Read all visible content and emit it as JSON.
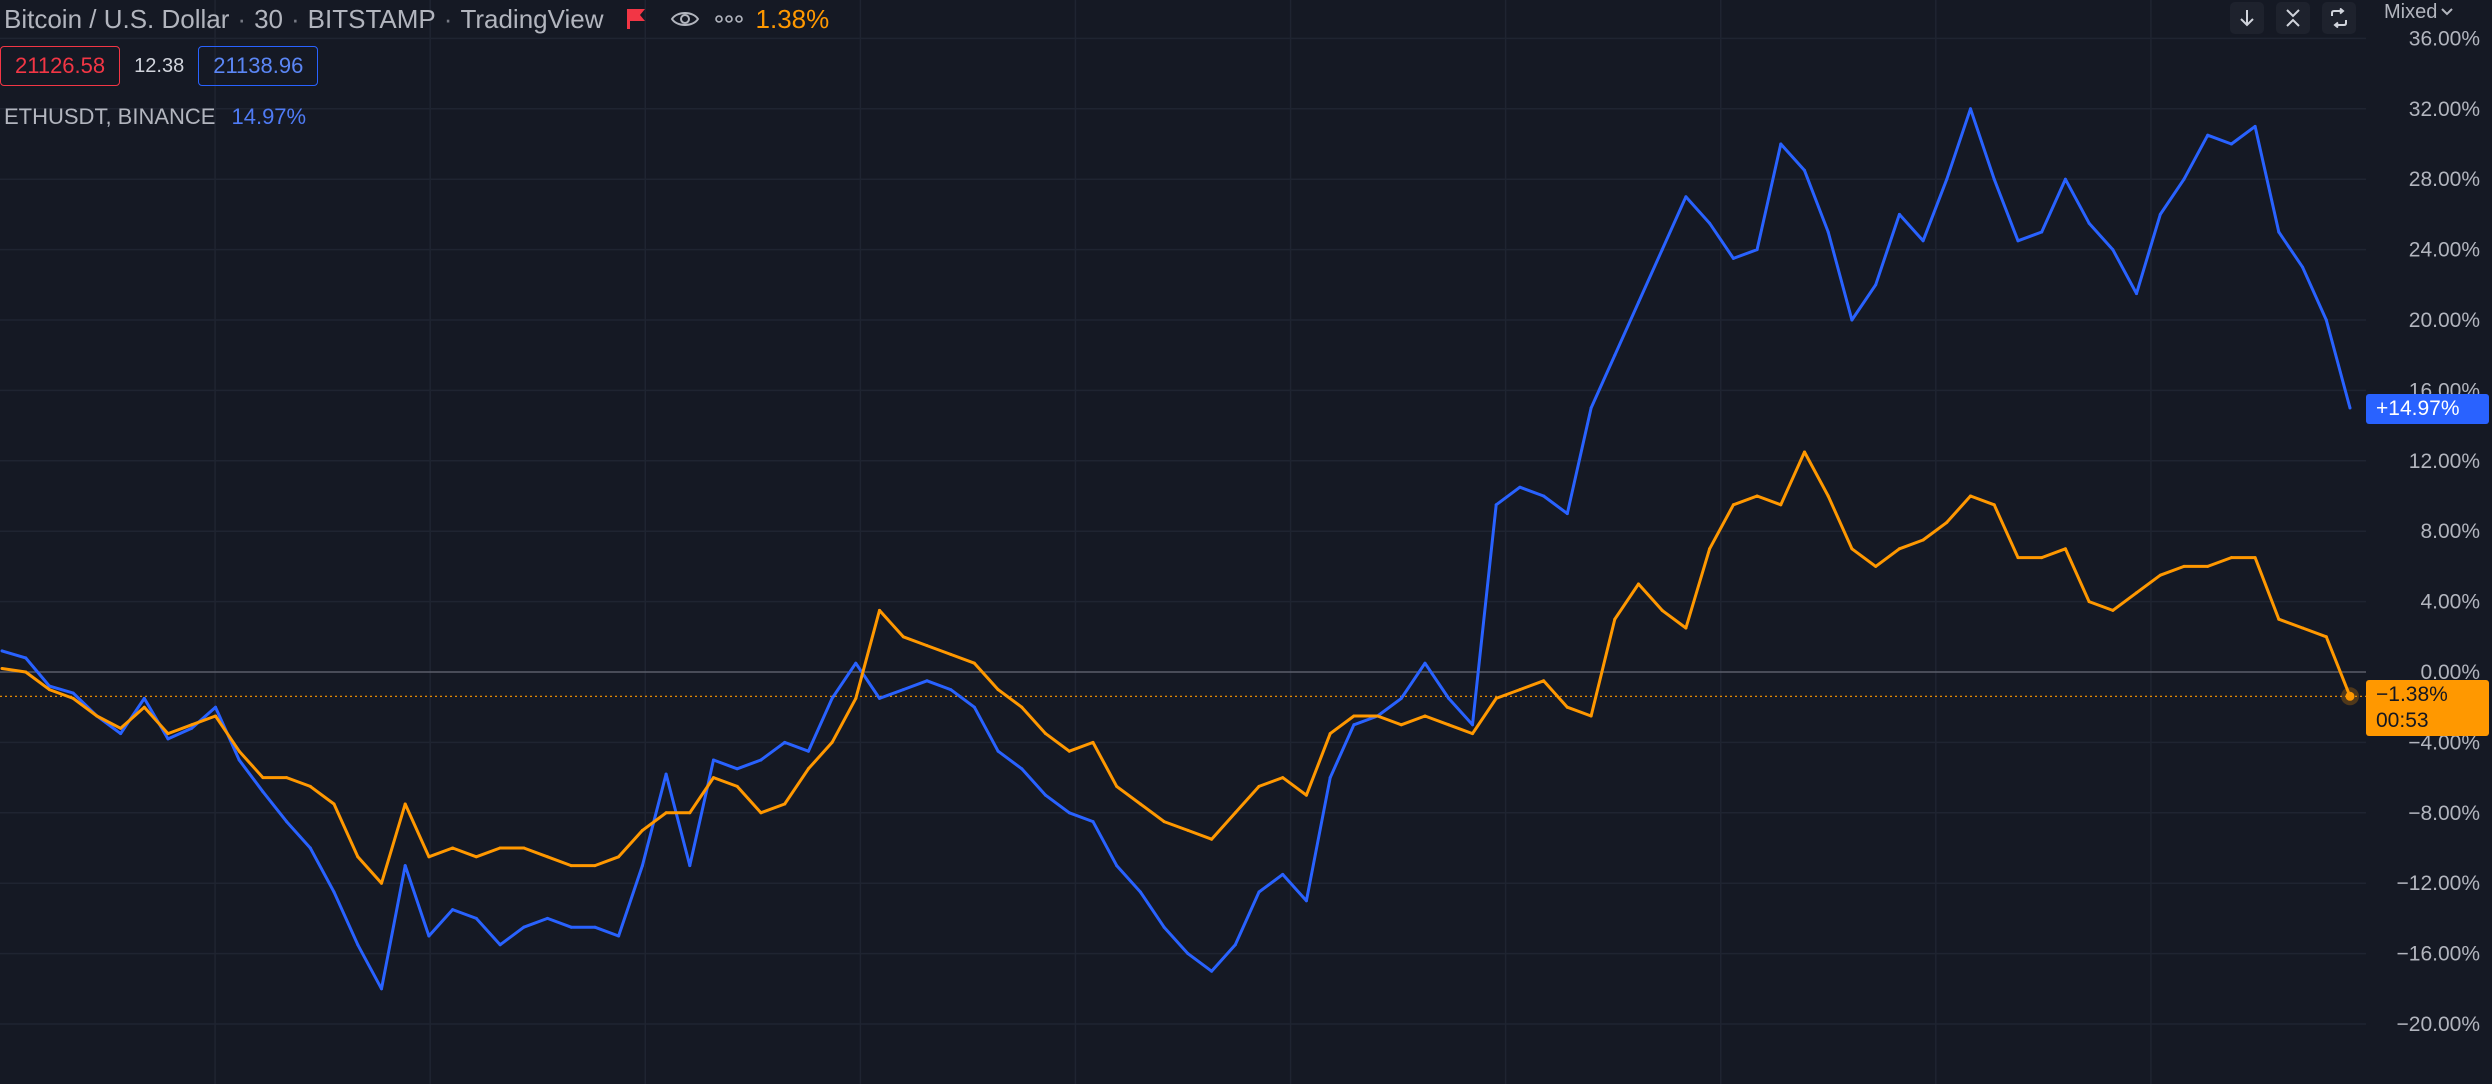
{
  "header": {
    "symbol": "Bitcoin / U.S. Dollar",
    "interval": "30",
    "exchange": "BITSTAMP",
    "provider": "TradingView",
    "change": "1.38%"
  },
  "quote": {
    "bid": "21126.58",
    "spread": "12.38",
    "ask": "21138.96"
  },
  "compare": {
    "label": "ETHUSDT, BINANCE",
    "change": "14.97%"
  },
  "controls": {
    "scale_mode": "Mixed"
  },
  "badges": {
    "eth_last": "+14.97%",
    "btc_last": "−1.38%",
    "countdown": "00:53"
  },
  "colors": {
    "background": "#151924",
    "btc_series": "#ff9800",
    "eth_series": "#2962ff",
    "bid": "#f23645",
    "grid": "#1f2431"
  },
  "icons": [
    "flag-icon",
    "eye-icon",
    "more-icon",
    "arrow-down-icon",
    "collapse-icon",
    "refresh-icon",
    "chevron-down-icon"
  ],
  "chart_data": {
    "type": "line",
    "y_unit": "%",
    "ylim": [
      -22,
      36
    ],
    "y_ticks": [
      36,
      32,
      28,
      24,
      20,
      16,
      12,
      8,
      4,
      0,
      -4,
      -8,
      -12,
      -16,
      -20
    ],
    "y_tick_labels": [
      "36.00%",
      "32.00%",
      "28.00%",
      "24.00%",
      "20.00%",
      "16.00%",
      "12.00%",
      "8.00%",
      "4.00%",
      "0.00%",
      "−4.00%",
      "−8.00%",
      "−12.00%",
      "−16.00%",
      "−20.00%"
    ],
    "x_count": 100,
    "grid": true,
    "series": [
      {
        "key": "eth",
        "color": "#2962ff",
        "values": [
          1.2,
          0.8,
          -0.8,
          -1.2,
          -2.5,
          -3.5,
          -1.5,
          -3.8,
          -3.2,
          -2.0,
          -5.0,
          -6.8,
          -8.5,
          -10.0,
          -12.5,
          -15.5,
          -18.0,
          -11.0,
          -15.0,
          -13.5,
          -14.0,
          -15.5,
          -14.5,
          -14.0,
          -14.5,
          -14.5,
          -15.0,
          -11.0,
          -5.8,
          -11.0,
          -5.0,
          -5.5,
          -5.0,
          -4.0,
          -4.5,
          -1.5,
          0.5,
          -1.5,
          -1.0,
          -0.5,
          -1.0,
          -2.0,
          -4.5,
          -5.5,
          -7.0,
          -8.0,
          -8.5,
          -11.0,
          -12.5,
          -14.5,
          -16.0,
          -17.0,
          -15.5,
          -12.5,
          -11.5,
          -13.0,
          -6.0,
          -3.0,
          -2.5,
          -1.5,
          0.5,
          -1.5,
          -3.0,
          9.5,
          10.5,
          10.0,
          9.0,
          15.0,
          18.0,
          21.0,
          24.0,
          27.0,
          25.5,
          23.5,
          24.0,
          30.0,
          28.5,
          25.0,
          20.0,
          22.0,
          26.0,
          24.5,
          28.0,
          32.0,
          28.0,
          24.5,
          25.0,
          28.0,
          25.5,
          24.0,
          21.5,
          26.0,
          28.0,
          30.5,
          30.0,
          31.0,
          25.0,
          23.0,
          20.0,
          15.0
        ]
      },
      {
        "key": "btc",
        "color": "#ff9800",
        "values": [
          0.2,
          0.0,
          -1.0,
          -1.5,
          -2.5,
          -3.2,
          -2.0,
          -3.5,
          -3.0,
          -2.5,
          -4.5,
          -6.0,
          -6.0,
          -6.5,
          -7.5,
          -10.5,
          -12.0,
          -7.5,
          -10.5,
          -10.0,
          -10.5,
          -10.0,
          -10.0,
          -10.5,
          -11.0,
          -11.0,
          -10.5,
          -9.0,
          -8.0,
          -8.0,
          -6.0,
          -6.5,
          -8.0,
          -7.5,
          -5.5,
          -4.0,
          -1.5,
          3.5,
          2.0,
          1.5,
          1.0,
          0.5,
          -1.0,
          -2.0,
          -3.5,
          -4.5,
          -4.0,
          -6.5,
          -7.5,
          -8.5,
          -9.0,
          -9.5,
          -8.0,
          -6.5,
          -6.0,
          -7.0,
          -3.5,
          -2.5,
          -2.5,
          -3.0,
          -2.5,
          -3.0,
          -3.5,
          -1.5,
          -1.0,
          -0.5,
          -2.0,
          -2.5,
          3.0,
          5.0,
          3.5,
          2.5,
          7.0,
          9.5,
          10.0,
          9.5,
          12.5,
          10.0,
          7.0,
          6.0,
          7.0,
          7.5,
          8.5,
          10.0,
          9.5,
          6.5,
          6.5,
          7.0,
          4.0,
          3.5,
          4.5,
          5.5,
          6.0,
          6.0,
          6.5,
          6.5,
          3.0,
          2.5,
          2.0,
          -1.38
        ]
      }
    ]
  }
}
